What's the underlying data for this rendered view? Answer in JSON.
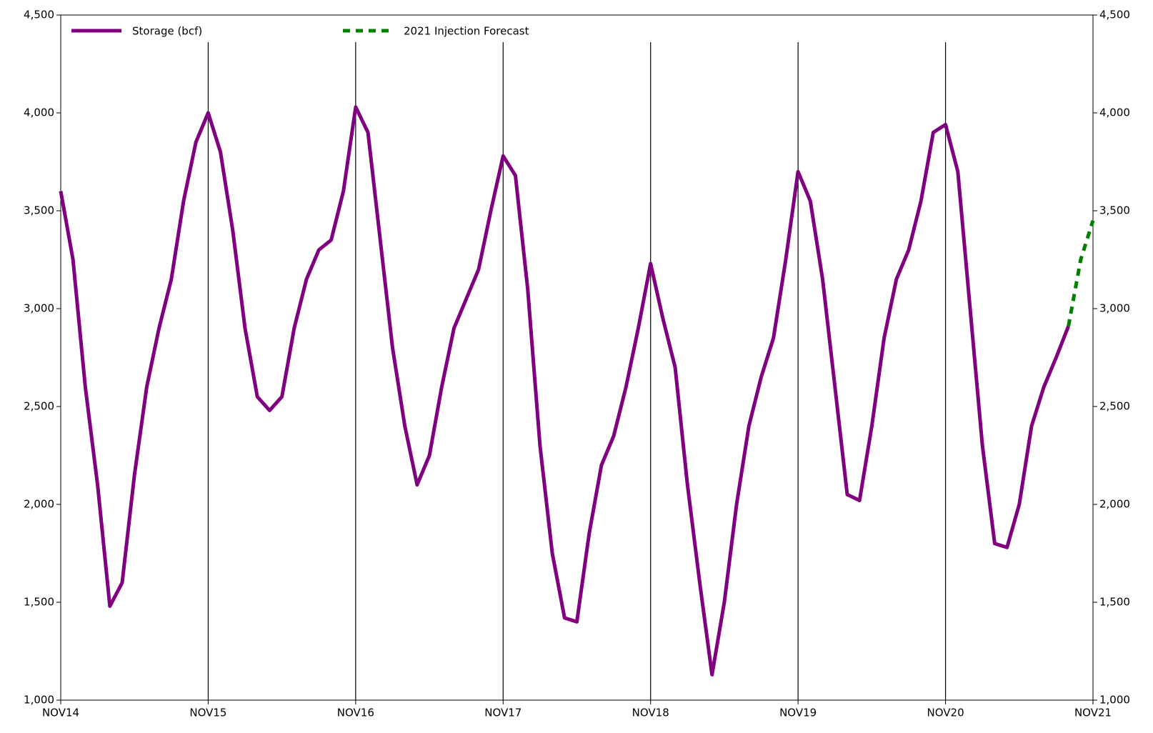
{
  "chart_data": {
    "type": "line",
    "x": [
      0,
      1,
      2,
      3,
      4,
      5,
      6,
      7,
      8,
      9,
      10,
      11,
      12,
      13,
      14,
      15,
      16,
      17,
      18,
      19,
      20,
      21,
      22,
      23,
      24,
      25,
      26,
      27,
      28,
      29,
      30,
      31,
      32,
      33,
      34,
      35,
      36,
      37,
      38,
      39,
      40,
      41,
      42,
      43,
      44,
      45,
      46,
      47,
      48,
      49,
      50,
      51,
      52,
      53,
      54,
      55,
      56,
      57,
      58,
      59,
      60,
      61,
      62,
      63,
      64,
      65,
      66,
      67,
      68,
      69,
      70,
      71,
      72,
      73,
      74,
      75,
      76,
      77,
      78,
      79,
      80,
      81,
      82,
      83,
      84
    ],
    "series": [
      {
        "name": "Storage (bcf)",
        "color": "#800080",
        "dash": false,
        "values": [
          3600,
          3250,
          2600,
          2100,
          1480,
          1600,
          2150,
          2600,
          2900,
          3150,
          3550,
          3850,
          4000,
          3800,
          3400,
          2900,
          2550,
          2480,
          2550,
          2900,
          3150,
          3300,
          3350,
          3600,
          4030,
          3900,
          3350,
          2800,
          2400,
          2100,
          2250,
          2600,
          2900,
          3050,
          3200,
          3500,
          3780,
          3680,
          3100,
          2300,
          1750,
          1420,
          1400,
          1850,
          2200,
          2350,
          2600,
          2900,
          3230,
          2950,
          2700,
          2100,
          1600,
          1130,
          1500,
          2000,
          2400,
          2650,
          2850,
          3250,
          3700,
          3550,
          3150,
          2600,
          2050,
          2020,
          2400,
          2850,
          3150,
          3300,
          3550,
          3900,
          3940,
          3700,
          3000,
          2300,
          1800,
          1780,
          2000,
          2400,
          2600,
          2750,
          2910,
          null,
          null
        ]
      },
      {
        "name": "2021 Injection Forecast",
        "color": "#008000",
        "dash": true,
        "values": [
          null,
          null,
          null,
          null,
          null,
          null,
          null,
          null,
          null,
          null,
          null,
          null,
          null,
          null,
          null,
          null,
          null,
          null,
          null,
          null,
          null,
          null,
          null,
          null,
          null,
          null,
          null,
          null,
          null,
          null,
          null,
          null,
          null,
          null,
          null,
          null,
          null,
          null,
          null,
          null,
          null,
          null,
          null,
          null,
          null,
          null,
          null,
          null,
          null,
          null,
          null,
          null,
          null,
          null,
          null,
          null,
          null,
          null,
          null,
          null,
          null,
          null,
          null,
          null,
          null,
          null,
          null,
          null,
          null,
          null,
          null,
          null,
          null,
          null,
          null,
          null,
          null,
          null,
          null,
          null,
          null,
          null,
          2910,
          3250,
          3450
        ]
      }
    ],
    "xlim": [
      0,
      84
    ],
    "xticks": [
      {
        "value": 0,
        "label": "NOV14"
      },
      {
        "value": 12,
        "label": "NOV15"
      },
      {
        "value": 24,
        "label": "NOV16"
      },
      {
        "value": 36,
        "label": "NOV17"
      },
      {
        "value": 48,
        "label": "NOV18"
      },
      {
        "value": 60,
        "label": "NOV19"
      },
      {
        "value": 72,
        "label": "NOV20"
      },
      {
        "value": 84,
        "label": "NOV21"
      }
    ],
    "ylim": [
      1000,
      4500
    ],
    "yticks": [
      {
        "value": 1000,
        "label": "1,000"
      },
      {
        "value": 1500,
        "label": "1,500"
      },
      {
        "value": 2000,
        "label": "2,000"
      },
      {
        "value": 2500,
        "label": "2,500"
      },
      {
        "value": 3000,
        "label": "3,000"
      },
      {
        "value": 3500,
        "label": "3,500"
      },
      {
        "value": 4000,
        "label": "4,000"
      },
      {
        "value": 4500,
        "label": "4,500"
      }
    ],
    "y2lim": [
      1000,
      4500
    ],
    "y2ticks": [
      {
        "value": 1000,
        "label": "1,000"
      },
      {
        "value": 1500,
        "label": "1,500"
      },
      {
        "value": 2000,
        "label": "2,000"
      },
      {
        "value": 2500,
        "label": "2,500"
      },
      {
        "value": 3000,
        "label": "3,000"
      },
      {
        "value": 3500,
        "label": "3,500"
      },
      {
        "value": 4000,
        "label": "4,000"
      },
      {
        "value": 4500,
        "label": "4,500"
      }
    ],
    "xgrid": true
  }
}
